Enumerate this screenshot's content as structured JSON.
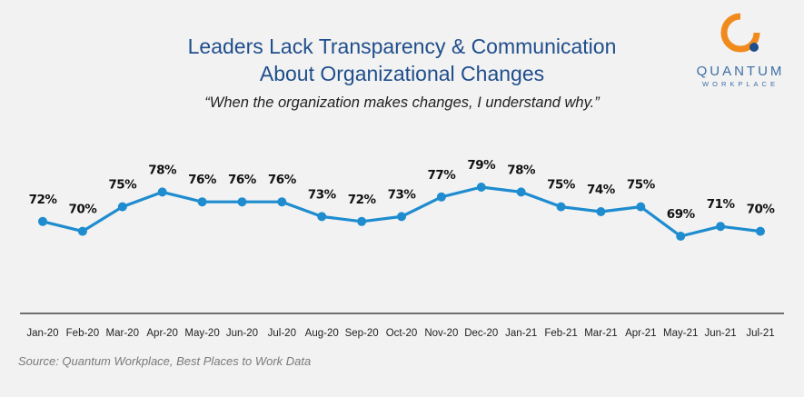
{
  "header": {
    "title_line1": "Leaders Lack Transparency & Communication",
    "title_line2": "About Organizational Changes",
    "subtitle": "“When the organization makes changes, I understand why.”"
  },
  "logo": {
    "name": "QUANTUM",
    "sub": "WORKPLACE",
    "icon": "quantum-q-logo-icon",
    "colors": {
      "ring": "#f08a1c",
      "dot": "#1f4e8c",
      "text": "#3d6fa5"
    }
  },
  "source": "Source: Quantum Workplace, Best Places to Work Data",
  "colors": {
    "line": "#1e8ccf",
    "title": "#1f4e8c",
    "axis": "#222222",
    "background": "#f2f2f2"
  },
  "chart_data": {
    "type": "line",
    "title": "Leaders Lack Transparency & Communication About Organizational Changes",
    "subtitle": "“When the organization makes changes, I understand why.”",
    "categories": [
      "Jan-20",
      "Feb-20",
      "Mar-20",
      "Apr-20",
      "May-20",
      "Jun-20",
      "Jul-20",
      "Aug-20",
      "Sep-20",
      "Oct-20",
      "Nov-20",
      "Dec-20",
      "Jan-21",
      "Feb-21",
      "Mar-21",
      "Apr-21",
      "May-21",
      "Jun-21",
      "Jul-21"
    ],
    "series": [
      {
        "values": [
          72,
          70,
          75,
          78,
          76,
          76,
          76,
          73,
          72,
          73,
          77,
          79,
          78,
          75,
          74,
          75,
          69,
          71,
          70
        ]
      }
    ],
    "data_labels": [
      "72%",
      "70%",
      "75%",
      "78%",
      "76%",
      "76%",
      "76%",
      "73%",
      "72%",
      "73%",
      "77%",
      "79%",
      "78%",
      "75%",
      "74%",
      "75%",
      "69%",
      "71%",
      "70%"
    ],
    "xlabel": "",
    "ylabel": "",
    "grid": false,
    "legend": "none"
  }
}
